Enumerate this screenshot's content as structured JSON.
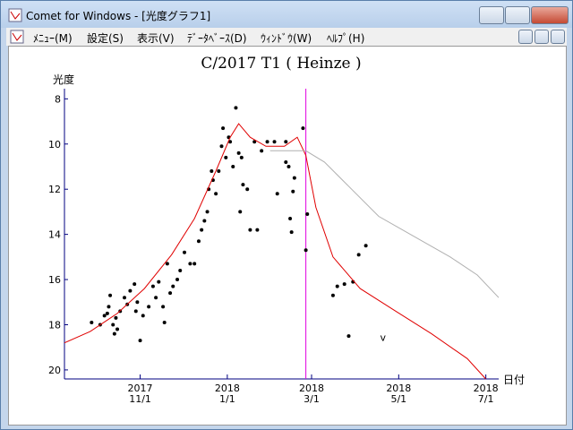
{
  "window": {
    "title": "Comet for Windows - [光度グラフ1]",
    "menu": [
      "ﾒﾆｭｰ(M)",
      "設定(S)",
      "表示(V)",
      "ﾃﾞｰﾀﾍﾞｰｽ(D)",
      "ｳｨﾝﾄﾞｳ(W)",
      "ﾍﾙﾌﾟ(H)"
    ]
  },
  "chart_data": {
    "type": "scatter",
    "title": "C/2017 T1 ( Heinze )",
    "y_label": "光度",
    "x_label": "日付",
    "xlim": [
      "2017-09-09",
      "2018-07-10"
    ],
    "ylim": [
      20.4,
      7.55
    ],
    "xticks": [
      {
        "value": "2017-11-01",
        "label": [
          "2017",
          "11/1"
        ]
      },
      {
        "value": "2018-01-01",
        "label": [
          "2018",
          "1/1"
        ]
      },
      {
        "value": "2018-03-01",
        "label": [
          "2018",
          "3/1"
        ]
      },
      {
        "value": "2018-05-01",
        "label": [
          "2018",
          "5/1"
        ]
      },
      {
        "value": "2018-07-01",
        "label": [
          "2018",
          "7/1"
        ]
      }
    ],
    "yticks": [
      8,
      10,
      12,
      14,
      16,
      18,
      20
    ],
    "cursor_date": "2018-02-25",
    "cursor_color": "#e000e0",
    "annotations": [
      {
        "text": "v",
        "x": "2018-04-20",
        "y": 18.55
      }
    ],
    "series": [
      {
        "style": "points",
        "color": "#000000",
        "x": [
          "2017-09-28",
          "2017-10-04",
          "2017-10-07",
          "2017-10-09",
          "2017-10-10",
          "2017-10-11",
          "2017-10-13",
          "2017-10-14",
          "2017-10-15",
          "2017-10-16",
          "2017-10-18",
          "2017-10-21",
          "2017-10-23",
          "2017-10-25",
          "2017-10-28",
          "2017-10-29",
          "2017-10-30",
          "2017-11-01",
          "2017-11-03",
          "2017-11-07",
          "2017-11-10",
          "2017-11-12",
          "2017-11-14",
          "2017-11-17",
          "2017-11-18",
          "2017-11-20",
          "2017-11-22",
          "2017-11-24",
          "2017-11-27",
          "2017-11-29",
          "2017-12-02",
          "2017-12-06",
          "2017-12-09",
          "2017-12-12",
          "2017-12-14",
          "2017-12-16",
          "2017-12-18",
          "2017-12-19",
          "2017-12-21",
          "2017-12-22",
          "2017-12-24",
          "2017-12-26",
          "2017-12-28",
          "2017-12-29",
          "2017-12-31",
          "2018-01-02",
          "2018-01-03",
          "2018-01-05",
          "2018-01-07",
          "2018-01-09",
          "2018-01-10",
          "2018-01-11",
          "2018-01-12",
          "2018-01-15",
          "2018-01-17",
          "2018-01-20",
          "2018-01-22",
          "2018-01-25",
          "2018-01-29",
          "2018-02-03",
          "2018-02-11",
          "2018-02-05",
          "2018-02-11",
          "2018-02-13",
          "2018-02-14",
          "2018-02-15",
          "2018-02-16",
          "2018-02-17",
          "2018-02-23",
          "2018-02-26",
          "2018-02-25",
          "2018-03-16",
          "2018-03-19",
          "2018-03-24",
          "2018-03-27",
          "2018-03-30",
          "2018-04-03",
          "2018-04-08"
        ],
        "values": [
          17.9,
          18.0,
          17.6,
          17.5,
          17.2,
          16.7,
          18.0,
          18.4,
          17.7,
          18.2,
          17.4,
          16.8,
          17.1,
          16.5,
          16.2,
          17.4,
          17.0,
          18.7,
          17.6,
          17.2,
          16.3,
          16.8,
          16.1,
          17.2,
          17.9,
          15.3,
          16.6,
          16.3,
          16.0,
          15.6,
          14.8,
          15.3,
          15.3,
          14.3,
          13.8,
          13.4,
          13.0,
          12.0,
          11.2,
          11.6,
          12.2,
          11.2,
          10.1,
          9.3,
          10.6,
          9.7,
          9.9,
          11.0,
          8.4,
          10.4,
          13.0,
          10.6,
          11.8,
          12.0,
          13.8,
          9.9,
          13.8,
          10.3,
          9.9,
          9.9,
          9.9,
          12.2,
          10.8,
          11.0,
          13.3,
          13.9,
          12.1,
          11.5,
          9.3,
          13.1,
          14.7,
          16.7,
          16.3,
          16.2,
          18.5,
          16.1,
          14.9,
          14.5
        ]
      },
      {
        "style": "line",
        "color": "#e00000",
        "x": [
          "2017-09-09",
          "2017-09-27",
          "2017-10-16",
          "2017-11-04",
          "2017-11-23",
          "2017-12-09",
          "2017-12-24",
          "2018-01-03",
          "2018-01-09",
          "2018-01-17",
          "2018-01-28",
          "2018-02-10",
          "2018-02-19",
          "2018-02-25",
          "2018-03-04",
          "2018-03-16",
          "2018-04-04",
          "2018-04-29",
          "2018-05-24",
          "2018-06-18",
          "2018-07-01"
        ],
        "values": [
          18.8,
          18.3,
          17.5,
          16.4,
          14.9,
          13.3,
          11.2,
          9.7,
          9.1,
          9.7,
          10.1,
          10.1,
          9.7,
          10.5,
          12.8,
          15.0,
          16.4,
          17.4,
          18.4,
          19.5,
          20.4
        ]
      },
      {
        "style": "line",
        "color": "#b0b0b0",
        "x": [
          "2018-01-31",
          "2018-02-25",
          "2018-03-10",
          "2018-03-29",
          "2018-04-17",
          "2018-05-12",
          "2018-06-06",
          "2018-06-25",
          "2018-07-10"
        ],
        "values": [
          10.3,
          10.3,
          10.8,
          12.0,
          13.2,
          14.1,
          15.0,
          15.8,
          16.8
        ]
      }
    ]
  }
}
